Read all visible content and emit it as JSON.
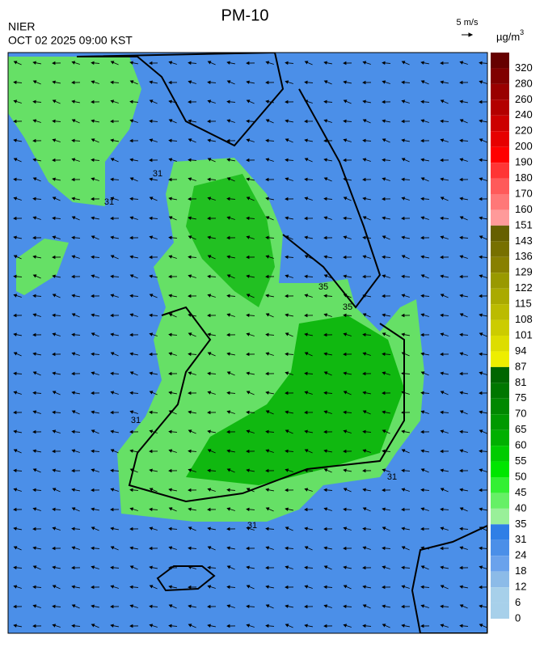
{
  "header": {
    "title": "PM-10",
    "agency": "NIER",
    "datetime": "OCT 02 2025 09:00 KST",
    "wind_scale": "5 m/s"
  },
  "colorbar": {
    "unit": "µg/m",
    "unit_sup": "3",
    "levels": [
      {
        "label": "320",
        "color": "#660000"
      },
      {
        "label": "280",
        "color": "#800000"
      },
      {
        "label": "260",
        "color": "#990000"
      },
      {
        "label": "240",
        "color": "#b30000"
      },
      {
        "label": "220",
        "color": "#cc0000"
      },
      {
        "label": "200",
        "color": "#e60000"
      },
      {
        "label": "190",
        "color": "#ff0000"
      },
      {
        "label": "180",
        "color": "#ff3535"
      },
      {
        "label": "170",
        "color": "#ff5a5a"
      },
      {
        "label": "160",
        "color": "#ff7878"
      },
      {
        "label": "151",
        "color": "#ff9a9a"
      },
      {
        "label": "143",
        "color": "#666000"
      },
      {
        "label": "136",
        "color": "#777000"
      },
      {
        "label": "129",
        "color": "#888000"
      },
      {
        "label": "122",
        "color": "#999900"
      },
      {
        "label": "115",
        "color": "#aaaa00"
      },
      {
        "label": "108",
        "color": "#bbbb00"
      },
      {
        "label": "101",
        "color": "#cccc00"
      },
      {
        "label": "94",
        "color": "#dddd00"
      },
      {
        "label": "87",
        "color": "#eeee00"
      },
      {
        "label": "81",
        "color": "#006600"
      },
      {
        "label": "75",
        "color": "#007700"
      },
      {
        "label": "70",
        "color": "#008800"
      },
      {
        "label": "65",
        "color": "#009900"
      },
      {
        "label": "60",
        "color": "#00b000"
      },
      {
        "label": "55",
        "color": "#00cc00"
      },
      {
        "label": "50",
        "color": "#00e600"
      },
      {
        "label": "45",
        "color": "#33f033"
      },
      {
        "label": "40",
        "color": "#66f066"
      },
      {
        "label": "35",
        "color": "#99f099"
      },
      {
        "label": "31",
        "color": "#2f7fe6"
      },
      {
        "label": "24",
        "color": "#4b8fe8"
      },
      {
        "label": "18",
        "color": "#6aa2ec"
      },
      {
        "label": "12",
        "color": "#8cbbe8"
      },
      {
        "label": "6",
        "color": "#a7d0ea"
      },
      {
        "label": "0",
        "color": "#a7d0ea"
      }
    ]
  },
  "contour_labels": [
    "31",
    "31",
    "31",
    "31",
    "31",
    "35",
    "35"
  ]
}
